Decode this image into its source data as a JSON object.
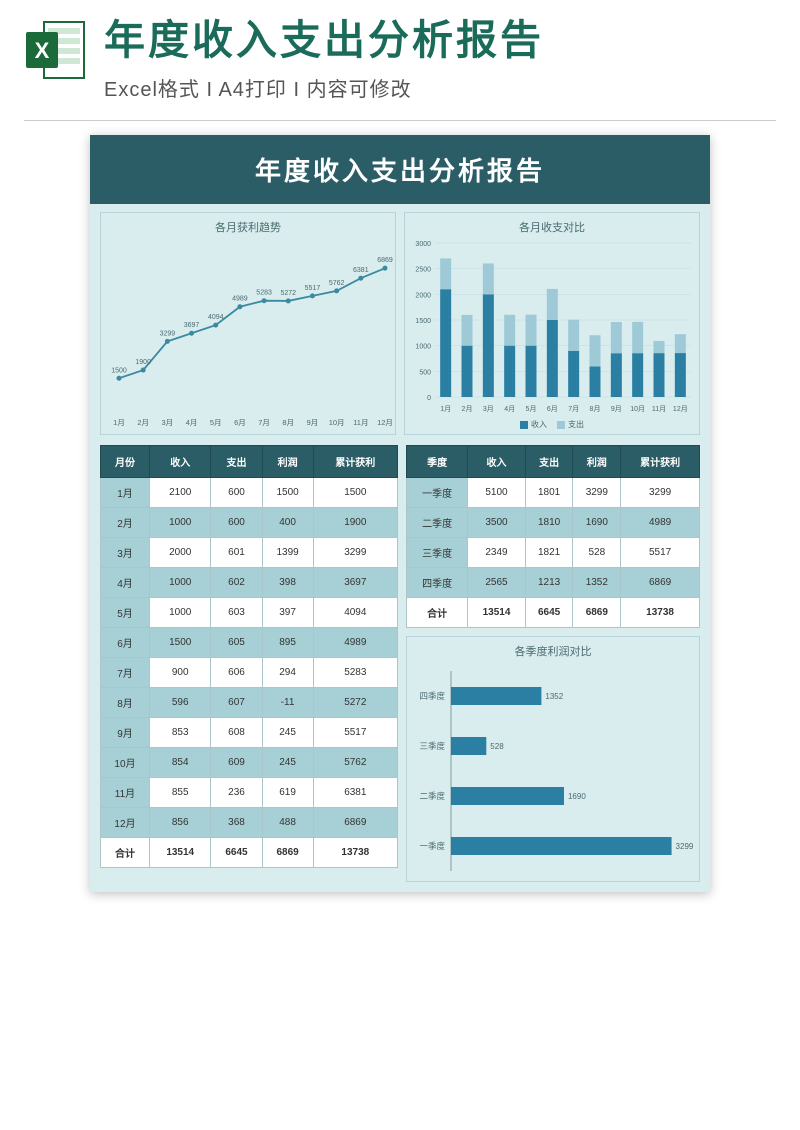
{
  "header": {
    "title": "年度收入支出分析报告",
    "subtitle": "Excel格式 I A4打印 I 内容可修改"
  },
  "doc": {
    "title": "年度收入支出分析报告",
    "colors": {
      "header_bg": "#2b5d66",
      "page_bg": "#d9ecee",
      "alt_row": "#a6d0d5",
      "bar_primary": "#2a7fa3",
      "bar_secondary": "#9ec9d6",
      "line_color": "#3a8aa0",
      "grid": "#c8dde0",
      "text": "#4a6b70"
    },
    "line_chart": {
      "title": "各月获利趋势",
      "x_labels": [
        "1月",
        "2月",
        "3月",
        "4月",
        "5月",
        "6月",
        "7月",
        "8月",
        "9月",
        "10月",
        "11月",
        "12月"
      ],
      "values": [
        1500,
        1900,
        3299,
        3697,
        4094,
        4989,
        5283,
        5272,
        5517,
        5762,
        6381,
        6869
      ],
      "y_min": 0,
      "y_max": 8000
    },
    "bar_chart": {
      "title": "各月收支对比",
      "x_labels": [
        "1月",
        "2月",
        "3月",
        "4月",
        "5月",
        "6月",
        "7月",
        "8月",
        "9月",
        "10月",
        "11月",
        "12月"
      ],
      "income": [
        2100,
        1000,
        2000,
        1000,
        1000,
        1500,
        900,
        596,
        853,
        854,
        855,
        856
      ],
      "expense": [
        600,
        600,
        601,
        602,
        603,
        605,
        606,
        607,
        608,
        609,
        236,
        368
      ],
      "y_ticks": [
        0,
        500,
        1000,
        1500,
        2000,
        2500,
        3000
      ],
      "legend": [
        "收入",
        "支出"
      ]
    },
    "month_table": {
      "headers": [
        "月份",
        "收入",
        "支出",
        "利润",
        "累计获利"
      ],
      "rows": [
        [
          "1月",
          "2100",
          "600",
          "1500",
          "1500"
        ],
        [
          "2月",
          "1000",
          "600",
          "400",
          "1900"
        ],
        [
          "3月",
          "2000",
          "601",
          "1399",
          "3299"
        ],
        [
          "4月",
          "1000",
          "602",
          "398",
          "3697"
        ],
        [
          "5月",
          "1000",
          "603",
          "397",
          "4094"
        ],
        [
          "6月",
          "1500",
          "605",
          "895",
          "4989"
        ],
        [
          "7月",
          "900",
          "606",
          "294",
          "5283"
        ],
        [
          "8月",
          "596",
          "607",
          "-11",
          "5272"
        ],
        [
          "9月",
          "853",
          "608",
          "245",
          "5517"
        ],
        [
          "10月",
          "854",
          "609",
          "245",
          "5762"
        ],
        [
          "11月",
          "855",
          "236",
          "619",
          "6381"
        ],
        [
          "12月",
          "856",
          "368",
          "488",
          "6869"
        ]
      ],
      "total": [
        "合计",
        "13514",
        "6645",
        "6869",
        "13738"
      ]
    },
    "quarter_table": {
      "headers": [
        "季度",
        "收入",
        "支出",
        "利润",
        "累计获利"
      ],
      "rows": [
        [
          "一季度",
          "5100",
          "1801",
          "3299",
          "3299"
        ],
        [
          "二季度",
          "3500",
          "1810",
          "1690",
          "4989"
        ],
        [
          "三季度",
          "2349",
          "1821",
          "528",
          "5517"
        ],
        [
          "四季度",
          "2565",
          "1213",
          "1352",
          "6869"
        ]
      ],
      "total": [
        "合计",
        "13514",
        "6645",
        "6869",
        "13738"
      ]
    },
    "hbar_chart": {
      "title": "各季度利润对比",
      "labels": [
        "四季度",
        "三季度",
        "二季度",
        "一季度"
      ],
      "values": [
        1352,
        528,
        1690,
        3299
      ],
      "x_max": 3500
    }
  }
}
